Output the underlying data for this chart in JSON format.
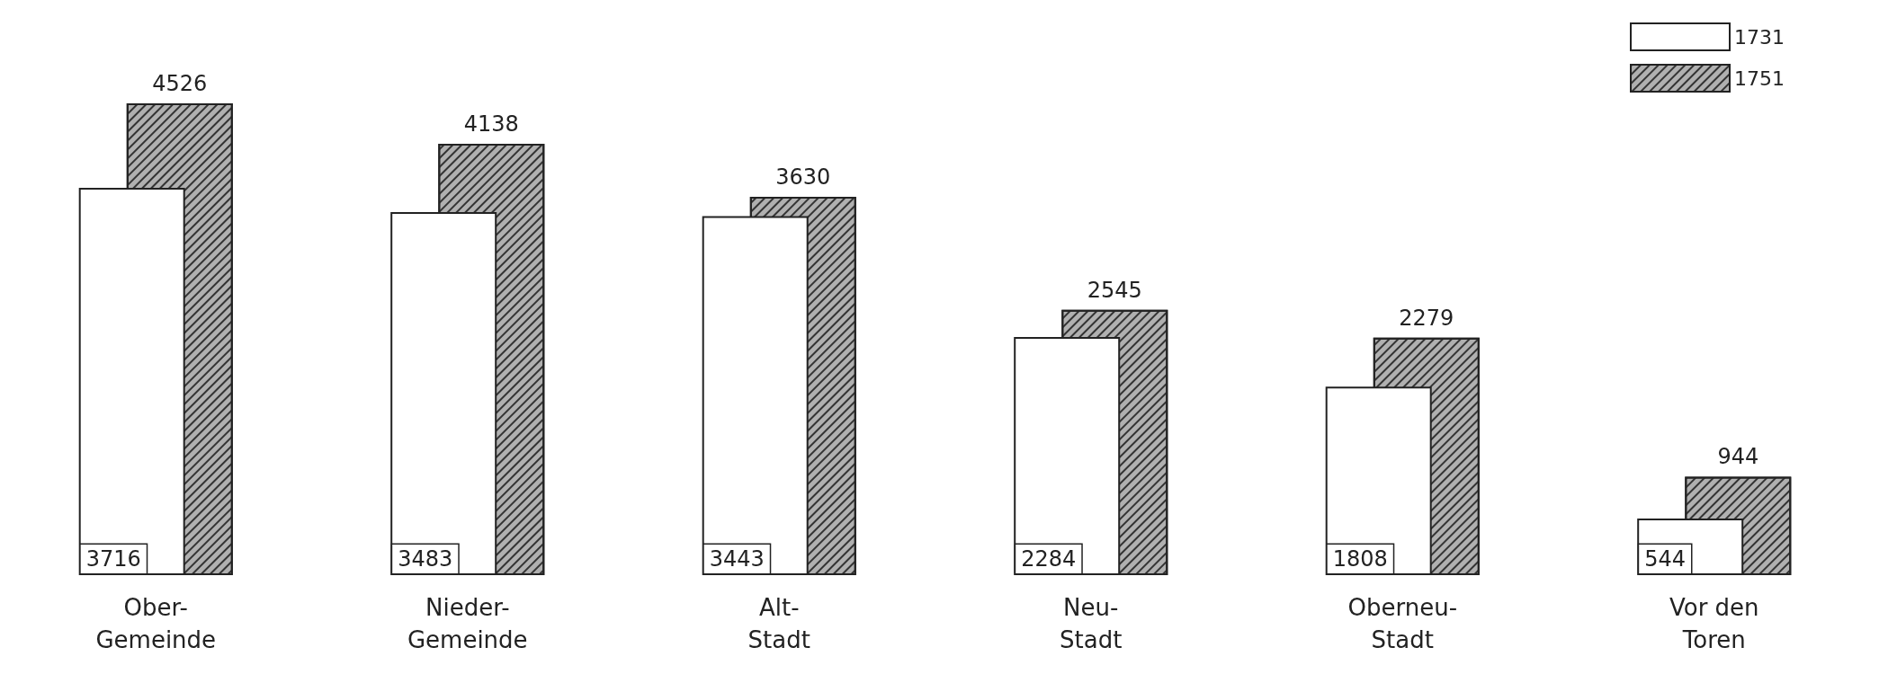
{
  "chart_data": {
    "type": "bar",
    "categories": [
      "Ober-\nGemeinde",
      "Nieder-\nGemeinde",
      "Alt-\nStadt",
      "Neu-\nStadt",
      "Oberneu-\nStadt",
      "Vor den\nToren"
    ],
    "series": [
      {
        "name": "1731",
        "color": "#ffffff",
        "values": [
          3716,
          3483,
          3443,
          2284,
          1808,
          544
        ]
      },
      {
        "name": "1751",
        "color": "#b0b0b0",
        "values": [
          4526,
          4138,
          3630,
          2545,
          2279,
          944
        ]
      }
    ],
    "data_labels": true,
    "legend": "top right"
  }
}
